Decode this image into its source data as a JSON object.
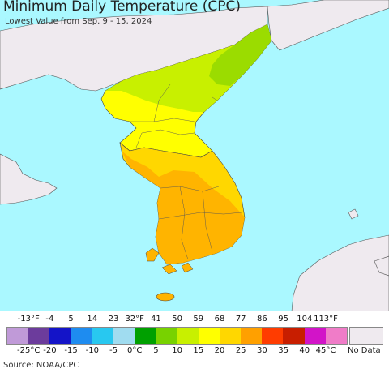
{
  "header": {
    "title": "Minimum Daily Temperature (CPC)",
    "subtitle": "Lowest Value from Sep. 9 - 15, 2024"
  },
  "map": {
    "ocean_color": "#aaf8ff",
    "land_nodata_color": "#efeaef",
    "border_color": "#444444",
    "regions": [
      {
        "name": "North Korea northeast",
        "temp_band_c": "5 to 10",
        "color": "#9bdc00"
      },
      {
        "name": "North Korea central",
        "temp_band_c": "10 to 15",
        "color": "#c8f000"
      },
      {
        "name": "North Korea west / south",
        "temp_band_c": "15 to 20",
        "color": "#ffff00"
      },
      {
        "name": "South Korea interior",
        "temp_band_c": "20 to 25",
        "color": "#ffd700"
      },
      {
        "name": "South Korea south / coasts",
        "temp_band_c": "25 to 30",
        "color": "#ffb400"
      }
    ]
  },
  "legend": {
    "fahrenheit_labels": [
      "-13°F",
      "-4",
      "5",
      "14",
      "23",
      "32°F",
      "41",
      "50",
      "59",
      "68",
      "77",
      "86",
      "95",
      "104",
      "113°F"
    ],
    "celsius_labels": [
      "-25°C",
      "-20",
      "-15",
      "-10",
      "-5",
      "0°C",
      "5",
      "10",
      "15",
      "20",
      "25",
      "30",
      "35",
      "40",
      "45°C"
    ],
    "colors": [
      "#c09ad8",
      "#6c3c9c",
      "#1414c8",
      "#1e8cf0",
      "#28c8f0",
      "#a0dcf0",
      "#00a000",
      "#78d200",
      "#c8f000",
      "#ffff00",
      "#ffd700",
      "#ffa000",
      "#ff3c00",
      "#c81e00",
      "#d214c8",
      "#f07cc8"
    ],
    "no_data_label": "No Data",
    "no_data_color": "#efeaef"
  },
  "footer": {
    "source": "Source: NOAA/CPC"
  }
}
